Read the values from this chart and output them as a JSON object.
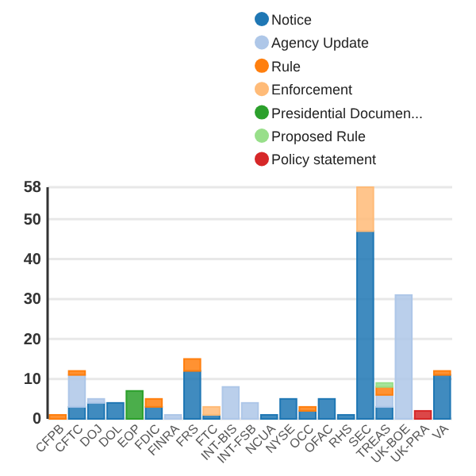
{
  "chart_data": {
    "type": "bar",
    "stacked": true,
    "legend": "top right",
    "grid": "y",
    "categories": [
      "CFPB",
      "CFTC",
      "DOJ",
      "DOL",
      "EOP",
      "FDIC",
      "FINRA",
      "FRS",
      "FTC",
      "INT-BIS",
      "INT-FSB",
      "NCUA",
      "NYSE",
      "OCC",
      "OFAC",
      "RHS",
      "SEC",
      "TREAS",
      "UK-BOE",
      "UK-PRA",
      "VA"
    ],
    "ylim": [
      0,
      58
    ],
    "yticks": [
      0,
      10,
      20,
      30,
      40,
      50,
      58
    ],
    "series": [
      {
        "name": "Notice",
        "color": "#1f77b4",
        "values": [
          0,
          3,
          4,
          4,
          0,
          3,
          0,
          12,
          1,
          0,
          0,
          1,
          5,
          2,
          5,
          1,
          47,
          3,
          0,
          0,
          11
        ]
      },
      {
        "name": "Agency Update",
        "color": "#aec7e8",
        "values": [
          0,
          8,
          1,
          0,
          0,
          0,
          1,
          0,
          0,
          8,
          4,
          0,
          0,
          0,
          0,
          0,
          0,
          3,
          31,
          0,
          0
        ]
      },
      {
        "name": "Rule",
        "color": "#ff7f0e",
        "values": [
          1,
          1,
          0,
          0,
          0,
          2,
          0,
          3,
          0,
          0,
          0,
          0,
          0,
          1,
          0,
          0,
          0,
          2,
          0,
          0,
          1
        ]
      },
      {
        "name": "Enforcement",
        "color": "#ffbb78",
        "values": [
          0,
          0,
          0,
          0,
          0,
          0,
          0,
          0,
          2,
          0,
          0,
          0,
          0,
          0,
          0,
          0,
          11,
          0,
          0,
          0,
          0
        ]
      },
      {
        "name": "Presidential Documen...",
        "color": "#2ca02c",
        "values": [
          0,
          0,
          0,
          0,
          7,
          0,
          0,
          0,
          0,
          0,
          0,
          0,
          0,
          0,
          0,
          0,
          0,
          0,
          0,
          0,
          0
        ]
      },
      {
        "name": "Proposed Rule",
        "color": "#98df8a",
        "values": [
          0,
          0,
          0,
          0,
          0,
          0,
          0,
          0,
          0,
          0,
          0,
          0,
          0,
          0,
          0,
          0,
          0,
          1,
          0,
          0,
          0
        ]
      },
      {
        "name": "Policy statement",
        "color": "#d62728",
        "values": [
          0,
          0,
          0,
          0,
          0,
          0,
          0,
          0,
          0,
          0,
          0,
          0,
          0,
          0,
          0,
          0,
          0,
          0,
          0,
          2,
          0
        ]
      }
    ]
  }
}
